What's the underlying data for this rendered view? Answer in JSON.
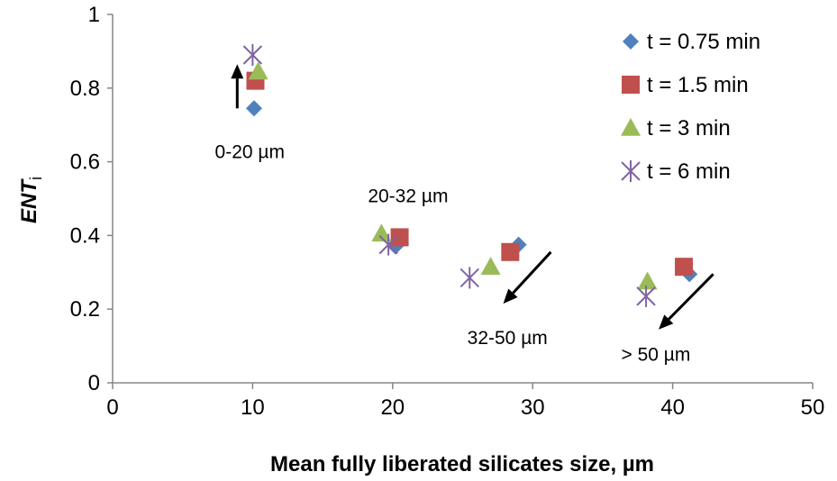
{
  "chart_data": {
    "type": "scatter",
    "xlabel": "Mean fully liberated silicates size, µm",
    "ylabel": {
      "main": "ENT",
      "sub": "i"
    },
    "xlim": [
      0,
      50
    ],
    "ylim": [
      0,
      1
    ],
    "x_ticks": [
      "0",
      "10",
      "20",
      "30",
      "40",
      "50"
    ],
    "y_ticks": [
      "0",
      "0.2",
      "0.4",
      "0.6",
      "0.8",
      "1"
    ],
    "grid": false,
    "legend_position": "top-right",
    "series": [
      {
        "name": "t = 0.75 min",
        "marker": "diamond",
        "color": "#4f81bd",
        "points": [
          {
            "x": 10.1,
            "y": 0.745
          },
          {
            "x": 20.2,
            "y": 0.37
          },
          {
            "x": 29.0,
            "y": 0.375
          },
          {
            "x": 41.2,
            "y": 0.295
          }
        ]
      },
      {
        "name": "t = 1.5 min",
        "marker": "square",
        "color": "#c0504d",
        "points": [
          {
            "x": 10.2,
            "y": 0.82
          },
          {
            "x": 20.5,
            "y": 0.395
          },
          {
            "x": 28.4,
            "y": 0.355
          },
          {
            "x": 40.8,
            "y": 0.315
          }
        ]
      },
      {
        "name": "t = 3 min",
        "marker": "triangle",
        "color": "#9bbb59",
        "points": [
          {
            "x": 10.4,
            "y": 0.845
          },
          {
            "x": 19.2,
            "y": 0.405
          },
          {
            "x": 27.0,
            "y": 0.315
          },
          {
            "x": 38.2,
            "y": 0.275
          }
        ]
      },
      {
        "name": "t = 6 min",
        "marker": "asterisk",
        "color": "#8064a2",
        "points": [
          {
            "x": 10.0,
            "y": 0.89
          },
          {
            "x": 19.7,
            "y": 0.375
          },
          {
            "x": 25.5,
            "y": 0.285
          },
          {
            "x": 38.1,
            "y": 0.235
          }
        ]
      }
    ],
    "annotations": [
      {
        "text": "0-20 µm",
        "x": 9.8,
        "y": 0.61
      },
      {
        "text": "20-32 µm",
        "x": 21.1,
        "y": 0.49
      },
      {
        "text": "32-50 µm",
        "x": 28.2,
        "y": 0.105
      },
      {
        "text": "> 50 µm",
        "x": 38.8,
        "y": 0.06
      }
    ],
    "arrows": [
      {
        "from": [
          8.9,
          0.745
        ],
        "to": [
          8.9,
          0.865
        ]
      },
      {
        "from": [
          31.3,
          0.355
        ],
        "to": [
          27.9,
          0.215
        ]
      },
      {
        "from": [
          42.9,
          0.295
        ],
        "to": [
          39.0,
          0.145
        ]
      }
    ]
  }
}
